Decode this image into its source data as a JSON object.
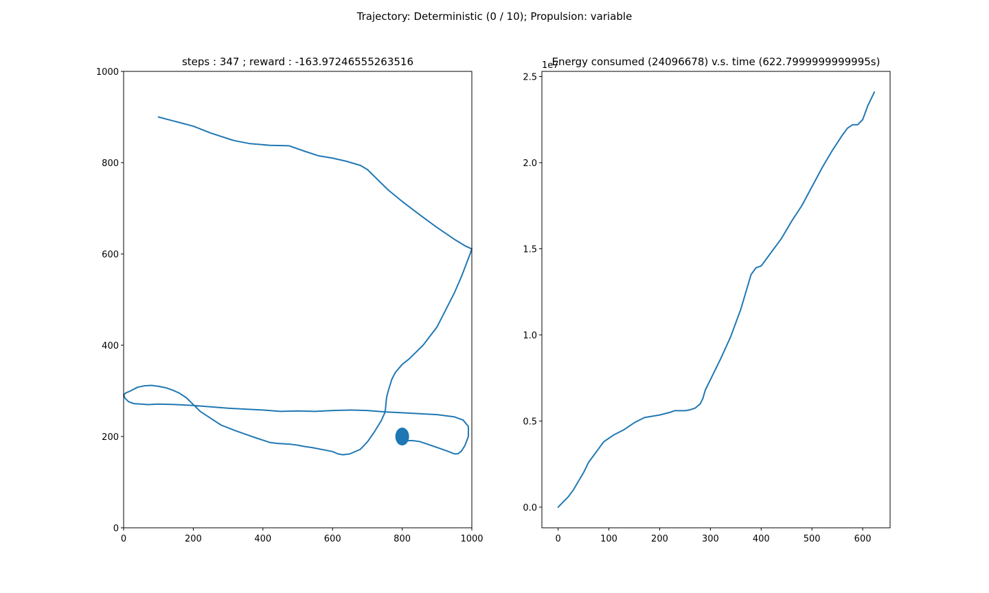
{
  "figure": {
    "suptitle": "Trajectory: Deterministic (0 / 10); Propulsion: variable",
    "line_color": "#1f77b4"
  },
  "chart_data": [
    {
      "type": "line",
      "title": "steps : 347 ; reward : -163.97246555263516",
      "xlabel": "",
      "ylabel": "",
      "xlim": [
        0,
        1000
      ],
      "ylim": [
        0,
        1000
      ],
      "xticks": [
        "0",
        "200",
        "400",
        "600",
        "800",
        "1000"
      ],
      "yticks": [
        "0",
        "200",
        "400",
        "600",
        "800",
        "1000"
      ],
      "grid": false,
      "series": [
        {
          "x": [
            100,
            150,
            200,
            250,
            310,
            320,
            360,
            420,
            475,
            520,
            560,
            600,
            640,
            680,
            700,
            720,
            760,
            800,
            850,
            900,
            950,
            980,
            1000,
            995,
            985,
            970,
            950,
            920,
            900,
            860,
            820,
            800,
            780,
            770,
            760,
            755,
            752,
            750,
            740,
            720,
            700,
            680,
            650,
            630,
            615,
            600,
            580,
            560,
            540,
            520,
            500,
            480,
            460,
            440,
            420,
            400,
            380,
            350,
            320,
            280,
            250,
            220,
            200,
            180,
            160,
            140,
            120,
            100,
            80,
            60,
            40,
            20,
            5,
            0,
            5,
            15,
            30,
            50,
            70,
            100,
            150,
            200,
            250,
            300,
            350,
            400,
            450,
            500,
            550,
            600,
            650,
            700,
            750,
            800,
            850,
            900,
            950,
            975,
            990,
            990,
            980,
            970,
            960,
            950,
            930,
            900,
            870,
            850,
            830,
            815,
            808
          ],
          "y": [
            900,
            890,
            880,
            865,
            850,
            848,
            842,
            838,
            837,
            825,
            815,
            810,
            803,
            794,
            785,
            770,
            740,
            715,
            686,
            658,
            632,
            618,
            611,
            600,
            580,
            550,
            515,
            470,
            440,
            400,
            370,
            358,
            340,
            325,
            300,
            285,
            260,
            252,
            235,
            210,
            188,
            172,
            162,
            160,
            162,
            167,
            170,
            173,
            176,
            178,
            181,
            183,
            184,
            185,
            187,
            192,
            197,
            205,
            213,
            225,
            240,
            255,
            270,
            285,
            295,
            302,
            307,
            310,
            312,
            311,
            308,
            300,
            295,
            290,
            283,
            276,
            272,
            271,
            270,
            271,
            270,
            268,
            265,
            262,
            260,
            258,
            255,
            256,
            255,
            257,
            258,
            257,
            254,
            252,
            250,
            248,
            243,
            236,
            222,
            200,
            180,
            168,
            162,
            162,
            168,
            176,
            184,
            189,
            191,
            191,
            190
          ]
        }
      ],
      "markers": [
        {
          "x": 800,
          "y": 200
        }
      ]
    },
    {
      "type": "line",
      "title": "Energy consumed (24096678) v.s. time (622.7999999999995s)",
      "xlabel": "",
      "ylabel": "",
      "offset_text": "1e7",
      "xlim": [
        -32,
        654
      ],
      "ylim": [
        -0.12,
        2.53
      ],
      "xticks": [
        0,
        100,
        200,
        300,
        400,
        500,
        600
      ],
      "yticks": [
        0.0,
        0.5,
        1.0,
        1.5,
        2.0,
        2.5
      ],
      "ytick_labels": [
        "0.0",
        "0.5",
        "1.0",
        "1.5",
        "2.0",
        "2.5"
      ],
      "grid": false,
      "series": [
        {
          "x": [
            0,
            10,
            20,
            30,
            40,
            50,
            60,
            70,
            80,
            90,
            100,
            110,
            130,
            150,
            170,
            180,
            200,
            220,
            230,
            240,
            250,
            260,
            270,
            280,
            285,
            290,
            300,
            320,
            340,
            360,
            380,
            390,
            400,
            410,
            420,
            440,
            460,
            480,
            500,
            520,
            540,
            560,
            570,
            580,
            590,
            600,
            610,
            623
          ],
          "y": [
            0.0,
            0.03,
            0.06,
            0.1,
            0.15,
            0.2,
            0.26,
            0.3,
            0.34,
            0.38,
            0.4,
            0.42,
            0.45,
            0.49,
            0.52,
            0.525,
            0.535,
            0.55,
            0.56,
            0.56,
            0.56,
            0.565,
            0.575,
            0.6,
            0.63,
            0.68,
            0.74,
            0.86,
            0.99,
            1.15,
            1.35,
            1.39,
            1.4,
            1.44,
            1.48,
            1.56,
            1.66,
            1.75,
            1.86,
            1.97,
            2.07,
            2.16,
            2.2,
            2.22,
            2.22,
            2.25,
            2.33,
            2.41
          ]
        }
      ]
    }
  ]
}
